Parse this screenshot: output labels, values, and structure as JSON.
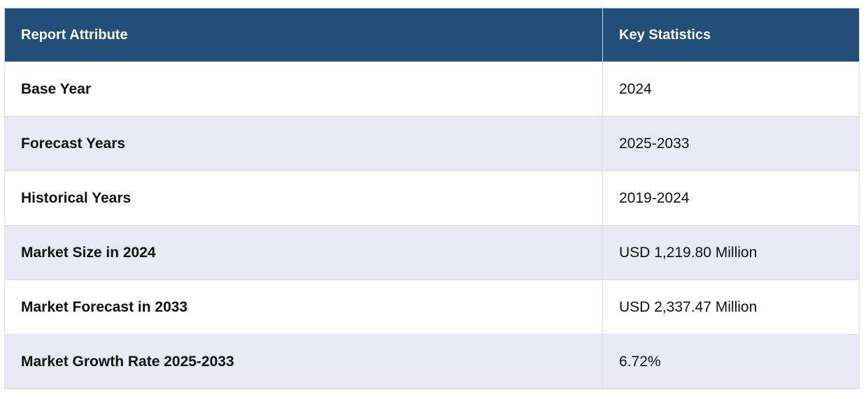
{
  "colors": {
    "header_bg": "#214f78",
    "row_alt_bg": "#e8e9f4",
    "row_bg": "#ffffff"
  },
  "table": {
    "headers": [
      "Report Attribute",
      "Key Statistics"
    ],
    "rows": [
      {
        "attribute": "Base Year",
        "value": "2024"
      },
      {
        "attribute": "Forecast Years",
        "value": "2025-2033"
      },
      {
        "attribute": "Historical Years",
        "value": "2019-2024"
      },
      {
        "attribute": "Market Size in 2024",
        "value": "USD 1,219.80 Million"
      },
      {
        "attribute": "Market Forecast in 2033",
        "value": "USD 2,337.47 Million"
      },
      {
        "attribute": "Market Growth Rate 2025-2033",
        "value": "6.72%"
      }
    ]
  }
}
